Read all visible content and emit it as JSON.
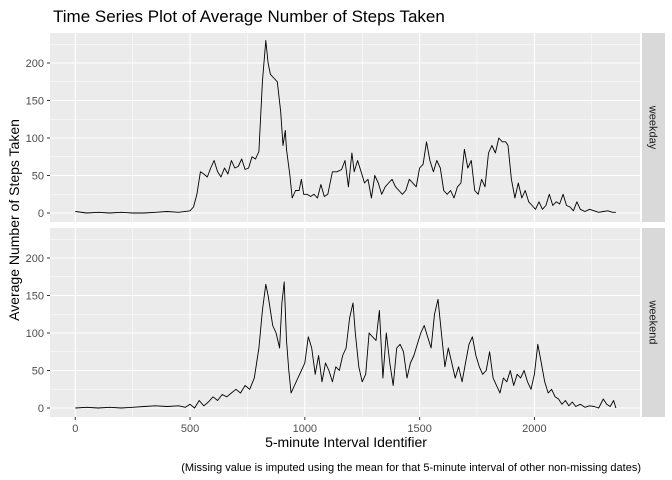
{
  "chart_data": {
    "type": "line",
    "title": "Time Series Plot of Average Number of Steps Taken",
    "xlabel": "5-minute Interval Identifier",
    "ylabel": "Average Number of Steps Taken",
    "caption": "(Missing value is imputed using the mean for that 5-minute interval of other non-missing dates)",
    "xlim": [
      -110,
      2460
    ],
    "ylim": [
      -12,
      240
    ],
    "x_ticks": [
      0,
      500,
      1000,
      1500,
      2000
    ],
    "x_tick_labels": [
      "0",
      "500",
      "1000",
      "1500",
      "2000"
    ],
    "y_ticks": [
      0,
      50,
      100,
      150,
      200
    ],
    "y_tick_labels": [
      "0",
      "50",
      "100",
      "150",
      "200"
    ],
    "grid": true,
    "facets": [
      {
        "label": "weekday",
        "points": [
          [
            0,
            2
          ],
          [
            50,
            0
          ],
          [
            100,
            1
          ],
          [
            150,
            0
          ],
          [
            200,
            1
          ],
          [
            250,
            0
          ],
          [
            300,
            0
          ],
          [
            350,
            1
          ],
          [
            400,
            2
          ],
          [
            450,
            1
          ],
          [
            500,
            3
          ],
          [
            515,
            8
          ],
          [
            530,
            25
          ],
          [
            545,
            55
          ],
          [
            560,
            52
          ],
          [
            575,
            48
          ],
          [
            590,
            60
          ],
          [
            605,
            70
          ],
          [
            620,
            55
          ],
          [
            635,
            48
          ],
          [
            650,
            60
          ],
          [
            665,
            52
          ],
          [
            680,
            70
          ],
          [
            695,
            60
          ],
          [
            710,
            62
          ],
          [
            725,
            72
          ],
          [
            740,
            58
          ],
          [
            755,
            60
          ],
          [
            770,
            75
          ],
          [
            785,
            72
          ],
          [
            800,
            82
          ],
          [
            815,
            175
          ],
          [
            830,
            230
          ],
          [
            840,
            200
          ],
          [
            850,
            185
          ],
          [
            865,
            180
          ],
          [
            880,
            175
          ],
          [
            895,
            135
          ],
          [
            905,
            90
          ],
          [
            915,
            110
          ],
          [
            920,
            85
          ],
          [
            935,
            50
          ],
          [
            945,
            20
          ],
          [
            960,
            30
          ],
          [
            975,
            30
          ],
          [
            985,
            45
          ],
          [
            995,
            25
          ],
          [
            1010,
            25
          ],
          [
            1025,
            22
          ],
          [
            1040,
            25
          ],
          [
            1055,
            20
          ],
          [
            1070,
            38
          ],
          [
            1085,
            22
          ],
          [
            1100,
            25
          ],
          [
            1120,
            55
          ],
          [
            1140,
            55
          ],
          [
            1160,
            58
          ],
          [
            1175,
            70
          ],
          [
            1190,
            35
          ],
          [
            1205,
            80
          ],
          [
            1215,
            55
          ],
          [
            1230,
            70
          ],
          [
            1245,
            55
          ],
          [
            1260,
            40
          ],
          [
            1275,
            45
          ],
          [
            1290,
            20
          ],
          [
            1305,
            50
          ],
          [
            1320,
            40
          ],
          [
            1335,
            25
          ],
          [
            1350,
            35
          ],
          [
            1365,
            40
          ],
          [
            1380,
            45
          ],
          [
            1395,
            35
          ],
          [
            1410,
            30
          ],
          [
            1425,
            25
          ],
          [
            1440,
            30
          ],
          [
            1455,
            45
          ],
          [
            1470,
            40
          ],
          [
            1485,
            35
          ],
          [
            1500,
            60
          ],
          [
            1515,
            65
          ],
          [
            1530,
            95
          ],
          [
            1545,
            70
          ],
          [
            1560,
            55
          ],
          [
            1575,
            70
          ],
          [
            1590,
            60
          ],
          [
            1605,
            30
          ],
          [
            1620,
            25
          ],
          [
            1635,
            30
          ],
          [
            1650,
            20
          ],
          [
            1665,
            35
          ],
          [
            1680,
            40
          ],
          [
            1695,
            85
          ],
          [
            1710,
            60
          ],
          [
            1725,
            70
          ],
          [
            1740,
            30
          ],
          [
            1755,
            25
          ],
          [
            1770,
            45
          ],
          [
            1785,
            35
          ],
          [
            1800,
            80
          ],
          [
            1815,
            90
          ],
          [
            1830,
            80
          ],
          [
            1845,
            100
          ],
          [
            1860,
            95
          ],
          [
            1875,
            95
          ],
          [
            1885,
            90
          ],
          [
            1900,
            45
          ],
          [
            1915,
            20
          ],
          [
            1930,
            40
          ],
          [
            1945,
            20
          ],
          [
            1960,
            30
          ],
          [
            1975,
            15
          ],
          [
            1990,
            10
          ],
          [
            2005,
            5
          ],
          [
            2020,
            15
          ],
          [
            2035,
            5
          ],
          [
            2050,
            10
          ],
          [
            2065,
            25
          ],
          [
            2080,
            10
          ],
          [
            2095,
            15
          ],
          [
            2110,
            12
          ],
          [
            2125,
            25
          ],
          [
            2140,
            10
          ],
          [
            2155,
            8
          ],
          [
            2170,
            3
          ],
          [
            2185,
            15
          ],
          [
            2200,
            5
          ],
          [
            2220,
            2
          ],
          [
            2240,
            5
          ],
          [
            2260,
            3
          ],
          [
            2280,
            1
          ],
          [
            2300,
            2
          ],
          [
            2320,
            3
          ],
          [
            2340,
            1
          ],
          [
            2355,
            1
          ]
        ]
      },
      {
        "label": "weekend",
        "points": [
          [
            0,
            0
          ],
          [
            50,
            1
          ],
          [
            100,
            0
          ],
          [
            150,
            1
          ],
          [
            200,
            0
          ],
          [
            250,
            1
          ],
          [
            300,
            2
          ],
          [
            350,
            3
          ],
          [
            400,
            2
          ],
          [
            450,
            3
          ],
          [
            480,
            1
          ],
          [
            500,
            5
          ],
          [
            520,
            0
          ],
          [
            540,
            10
          ],
          [
            560,
            3
          ],
          [
            580,
            8
          ],
          [
            600,
            15
          ],
          [
            620,
            10
          ],
          [
            640,
            18
          ],
          [
            660,
            15
          ],
          [
            680,
            20
          ],
          [
            700,
            25
          ],
          [
            720,
            20
          ],
          [
            740,
            30
          ],
          [
            760,
            25
          ],
          [
            780,
            40
          ],
          [
            800,
            80
          ],
          [
            815,
            130
          ],
          [
            830,
            165
          ],
          [
            840,
            150
          ],
          [
            850,
            130
          ],
          [
            860,
            110
          ],
          [
            875,
            100
          ],
          [
            890,
            80
          ],
          [
            900,
            140
          ],
          [
            910,
            168
          ],
          [
            920,
            90
          ],
          [
            930,
            50
          ],
          [
            940,
            20
          ],
          [
            955,
            30
          ],
          [
            970,
            40
          ],
          [
            985,
            50
          ],
          [
            1000,
            60
          ],
          [
            1015,
            95
          ],
          [
            1030,
            80
          ],
          [
            1045,
            45
          ],
          [
            1060,
            70
          ],
          [
            1075,
            35
          ],
          [
            1090,
            60
          ],
          [
            1105,
            50
          ],
          [
            1120,
            35
          ],
          [
            1135,
            55
          ],
          [
            1150,
            50
          ],
          [
            1165,
            70
          ],
          [
            1180,
            80
          ],
          [
            1195,
            120
          ],
          [
            1210,
            140
          ],
          [
            1220,
            100
          ],
          [
            1235,
            55
          ],
          [
            1250,
            35
          ],
          [
            1265,
            45
          ],
          [
            1280,
            100
          ],
          [
            1295,
            95
          ],
          [
            1310,
            90
          ],
          [
            1325,
            130
          ],
          [
            1340,
            40
          ],
          [
            1355,
            100
          ],
          [
            1370,
            60
          ],
          [
            1385,
            30
          ],
          [
            1400,
            80
          ],
          [
            1415,
            85
          ],
          [
            1430,
            75
          ],
          [
            1445,
            40
          ],
          [
            1460,
            60
          ],
          [
            1475,
            70
          ],
          [
            1490,
            85
          ],
          [
            1505,
            100
          ],
          [
            1520,
            110
          ],
          [
            1535,
            95
          ],
          [
            1550,
            80
          ],
          [
            1565,
            125
          ],
          [
            1580,
            145
          ],
          [
            1595,
            100
          ],
          [
            1610,
            55
          ],
          [
            1625,
            80
          ],
          [
            1640,
            60
          ],
          [
            1655,
            40
          ],
          [
            1670,
            55
          ],
          [
            1685,
            35
          ],
          [
            1700,
            60
          ],
          [
            1715,
            85
          ],
          [
            1730,
            95
          ],
          [
            1745,
            70
          ],
          [
            1760,
            55
          ],
          [
            1775,
            45
          ],
          [
            1790,
            50
          ],
          [
            1805,
            75
          ],
          [
            1820,
            40
          ],
          [
            1835,
            30
          ],
          [
            1850,
            20
          ],
          [
            1865,
            40
          ],
          [
            1880,
            35
          ],
          [
            1895,
            50
          ],
          [
            1910,
            30
          ],
          [
            1925,
            45
          ],
          [
            1940,
            40
          ],
          [
            1955,
            50
          ],
          [
            1970,
            35
          ],
          [
            1985,
            25
          ],
          [
            2000,
            45
          ],
          [
            2015,
            85
          ],
          [
            2030,
            60
          ],
          [
            2045,
            35
          ],
          [
            2060,
            20
          ],
          [
            2075,
            25
          ],
          [
            2090,
            15
          ],
          [
            2105,
            12
          ],
          [
            2120,
            5
          ],
          [
            2135,
            10
          ],
          [
            2150,
            3
          ],
          [
            2165,
            8
          ],
          [
            2180,
            2
          ],
          [
            2200,
            5
          ],
          [
            2220,
            1
          ],
          [
            2240,
            3
          ],
          [
            2260,
            2
          ],
          [
            2280,
            0
          ],
          [
            2300,
            12
          ],
          [
            2315,
            5
          ],
          [
            2330,
            2
          ],
          [
            2345,
            10
          ],
          [
            2355,
            0
          ]
        ]
      }
    ]
  }
}
